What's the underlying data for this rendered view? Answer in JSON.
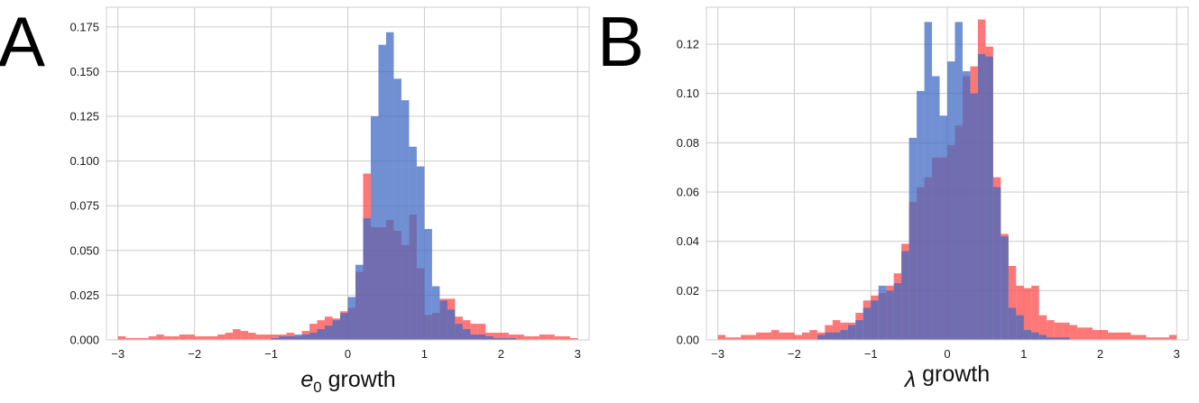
{
  "chart_data": [
    {
      "type": "bar",
      "panel_label": "A",
      "xlabel_symbol": "e",
      "xlabel_subscript": "0",
      "xlabel_rest": " growth",
      "xlim": [
        -3.15,
        3.15
      ],
      "ylim": [
        0,
        0.186
      ],
      "xticks": [
        "−3",
        "−2",
        "−1",
        "0",
        "1",
        "2",
        "3"
      ],
      "xtick_values": [
        -3,
        -2,
        -1,
        0,
        1,
        2,
        3
      ],
      "yticks": [
        "0.000",
        "0.025",
        "0.050",
        "0.075",
        "0.100",
        "0.125",
        "0.150",
        "0.175"
      ],
      "ytick_values": [
        0,
        0.025,
        0.05,
        0.075,
        0.1,
        0.125,
        0.15,
        0.175
      ],
      "bin_start": -3.0,
      "bin_width": 0.1,
      "grid": true,
      "series": [
        {
          "color": "#ff4a4a",
          "opacity": 0.75,
          "values": [
            0.002,
            0.001,
            0.001,
            0.001,
            0.002,
            0.003,
            0.002,
            0.002,
            0.003,
            0.003,
            0.002,
            0.002,
            0.002,
            0.003,
            0.004,
            0.006,
            0.005,
            0.004,
            0.003,
            0.003,
            0.003,
            0.003,
            0.004,
            0.002,
            0.005,
            0.009,
            0.011,
            0.013,
            0.012,
            0.016,
            0.018,
            0.038,
            0.093,
            0.063,
            0.063,
            0.067,
            0.061,
            0.053,
            0.07,
            0.04,
            0.014,
            0.015,
            0.023,
            0.023,
            0.013,
            0.011,
            0.009,
            0.009,
            0.004,
            0.004,
            0.004,
            0.003,
            0.003,
            0.002,
            0.002,
            0.003,
            0.003,
            0.002,
            0.002,
            0.001
          ]
        },
        {
          "color": "#4169c4",
          "opacity": 0.75,
          "values": [
            0,
            0,
            0,
            0,
            0,
            0,
            0,
            0,
            0,
            0,
            0,
            0,
            0,
            0,
            0,
            0,
            0,
            0,
            0,
            0,
            0.001,
            0.002,
            0.002,
            0.003,
            0.003,
            0.004,
            0.006,
            0.008,
            0.011,
            0.015,
            0.024,
            0.042,
            0.068,
            0.125,
            0.165,
            0.172,
            0.146,
            0.134,
            0.108,
            0.097,
            0.062,
            0.03,
            0.022,
            0.017,
            0.009,
            0.006,
            0.003,
            0.003,
            0.002,
            0.001,
            0.001,
            0.001,
            0,
            0,
            0,
            0,
            0,
            0,
            0,
            0
          ]
        }
      ]
    },
    {
      "type": "bar",
      "panel_label": "B",
      "xlabel_symbol": "λ",
      "xlabel_subscript": "",
      "xlabel_rest": " growth",
      "xlim": [
        -3.15,
        3.15
      ],
      "ylim": [
        0,
        0.135
      ],
      "xticks": [
        "−3",
        "−2",
        "−1",
        "0",
        "1",
        "2",
        "3"
      ],
      "xtick_values": [
        -3,
        -2,
        -1,
        0,
        1,
        2,
        3
      ],
      "yticks": [
        "0.00",
        "0.02",
        "0.04",
        "0.06",
        "0.08",
        "0.10",
        "0.12"
      ],
      "ytick_values": [
        0,
        0.02,
        0.04,
        0.06,
        0.08,
        0.1,
        0.12
      ],
      "bin_start": -3.0,
      "bin_width": 0.1,
      "grid": true,
      "series": [
        {
          "color": "#ff4a4a",
          "opacity": 0.75,
          "values": [
            0.002,
            0.001,
            0.001,
            0.002,
            0.002,
            0.003,
            0.003,
            0.004,
            0.003,
            0.003,
            0.002,
            0.003,
            0.004,
            0.003,
            0.006,
            0.008,
            0.007,
            0.007,
            0.011,
            0.016,
            0.018,
            0.019,
            0.022,
            0.027,
            0.039,
            0.056,
            0.062,
            0.066,
            0.074,
            0.074,
            0.079,
            0.087,
            0.107,
            0.111,
            0.13,
            0.119,
            0.066,
            0.043,
            0.03,
            0.022,
            0.021,
            0.022,
            0.01,
            0.008,
            0.007,
            0.007,
            0.006,
            0.005,
            0.005,
            0.004,
            0.004,
            0.003,
            0.003,
            0.003,
            0.002,
            0.002,
            0.001,
            0.001,
            0.001,
            0.002
          ]
        },
        {
          "color": "#4169c4",
          "opacity": 0.75,
          "values": [
            0,
            0,
            0,
            0,
            0,
            0,
            0,
            0,
            0,
            0,
            0,
            0,
            0,
            0.002,
            0.003,
            0.003,
            0.004,
            0.006,
            0.008,
            0.013,
            0.016,
            0.022,
            0.02,
            0.023,
            0.036,
            0.082,
            0.101,
            0.129,
            0.107,
            0.091,
            0.113,
            0.129,
            0.109,
            0.1,
            0.116,
            0.115,
            0.062,
            0.042,
            0.013,
            0.01,
            0.004,
            0.003,
            0.002,
            0.001,
            0.001,
            0.001,
            0,
            0,
            0,
            0,
            0,
            0,
            0,
            0,
            0,
            0,
            0,
            0,
            0,
            0
          ]
        }
      ]
    }
  ]
}
